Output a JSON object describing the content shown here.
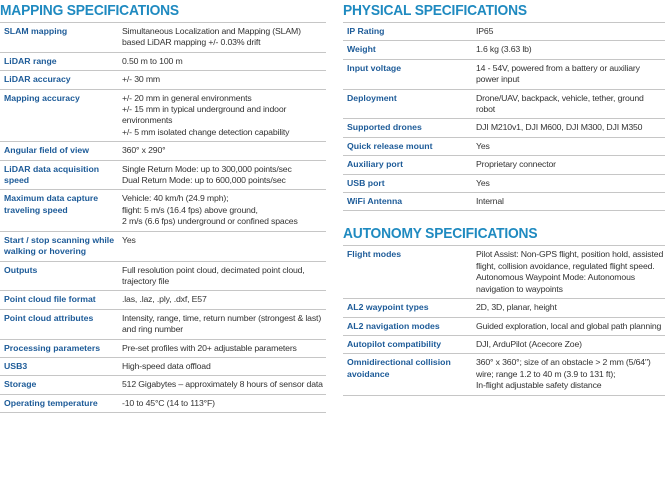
{
  "mapping": {
    "title": "MAPPING SPECIFICATIONS",
    "rows": [
      {
        "label": "SLAM mapping",
        "value": [
          "Simultaneous Localization and Mapping (SLAM) based LiDAR mapping +/- 0.03% drift"
        ]
      },
      {
        "label": "LiDAR range",
        "value": [
          "0.50 m to 100 m"
        ]
      },
      {
        "label": "LiDAR accuracy",
        "value": [
          "+/- 30 mm"
        ]
      },
      {
        "label": "Mapping accuracy",
        "value": [
          "+/- 20 mm in general environments",
          "+/- 15 mm in typical underground and indoor environments",
          "+/- 5 mm isolated change detection capability"
        ]
      },
      {
        "label": "Angular field of view",
        "value": [
          "360° x 290°"
        ]
      },
      {
        "label": "LiDAR data acquisition speed",
        "value": [
          "Single Return Mode: up to 300,000 points/sec",
          "Dual Return Mode: up to 600,000 points/sec"
        ]
      },
      {
        "label": "Maximum data capture traveling speed",
        "value": [
          "Vehicle: 40 km/h (24.9 mph);",
          "flight: 5 m/s (16.4 fps) above ground,",
          "2 m/s (6.6 fps) underground or confined spaces"
        ]
      },
      {
        "label": "Start / stop scanning while walking or hovering",
        "value": [
          "Yes"
        ]
      },
      {
        "label": "Outputs",
        "value": [
          "Full resolution point cloud, decimated point cloud, trajectory file"
        ]
      },
      {
        "label": "Point cloud file format",
        "value": [
          ".las, .laz, .ply, .dxf, E57"
        ]
      },
      {
        "label": "Point cloud attributes",
        "value": [
          "Intensity, range, time, return number (strongest & last) and ring number"
        ]
      },
      {
        "label": "Processing parameters",
        "value": [
          "Pre-set profiles with 20+ adjustable parameters"
        ]
      },
      {
        "label": "USB3",
        "value": [
          "High-speed data offload"
        ]
      },
      {
        "label": "Storage",
        "value": [
          "512 Gigabytes – approximately 8 hours of sensor data"
        ]
      },
      {
        "label": "Operating temperature",
        "value": [
          "-10 to 45°C (14 to 113°F)"
        ]
      }
    ]
  },
  "physical": {
    "title": "PHYSICAL SPECIFICATIONS",
    "rows": [
      {
        "label": "IP Rating",
        "value": [
          "IP65"
        ]
      },
      {
        "label": "Weight",
        "value": [
          "1.6 kg (3.63 lb)"
        ]
      },
      {
        "label": "Input voltage",
        "value": [
          "14 - 54V, powered from a battery or auxiliary power input"
        ]
      },
      {
        "label": "Deployment",
        "value": [
          "Drone/UAV, backpack, vehicle, tether, ground robot"
        ]
      },
      {
        "label": "Supported drones",
        "value": [
          "DJI M210v1, DJI M600, DJI M300, DJI M350"
        ]
      },
      {
        "label": "Quick release mount",
        "value": [
          "Yes"
        ]
      },
      {
        "label": "Auxiliary port",
        "value": [
          "Proprietary connector"
        ]
      },
      {
        "label": "USB port",
        "value": [
          "Yes"
        ]
      },
      {
        "label": "WiFi Antenna",
        "value": [
          "Internal"
        ]
      }
    ]
  },
  "autonomy": {
    "title": "AUTONOMY SPECIFICATIONS",
    "rows": [
      {
        "label": "Flight modes",
        "value": [
          "Pilot Assist: Non-GPS flight, position hold, assisted flight, collision avoidance, regulated flight speed.",
          "Autonomous Waypoint Mode: Autonomous navigation to waypoints"
        ]
      },
      {
        "label": "AL2 waypoint types",
        "value": [
          "2D, 3D, planar, height"
        ]
      },
      {
        "label": "AL2 navigation modes",
        "value": [
          "Guided exploration, local and global path planning"
        ]
      },
      {
        "label": "Autopilot compatibility",
        "value": [
          "DJI,  ArduPilot (Acecore Zoe)"
        ]
      },
      {
        "label": "Omnidirectional collision avoidance",
        "value": [
          "360° x 360°; size of an obstacle > 2 mm (5/64\") wire; range 1.2 to 40 m (3.9 to 131 ft);",
          "In-flight adjustable safety distance"
        ]
      }
    ]
  }
}
